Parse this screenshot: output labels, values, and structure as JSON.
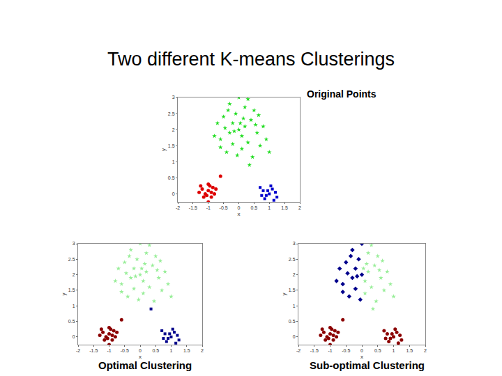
{
  "title": "Two different K-means Clusterings",
  "chart_data": [
    {
      "type": "scatter",
      "title": "Original Points",
      "x_label": "x",
      "y_label": "y",
      "xlim": [
        -2,
        2
      ],
      "xticks": [
        -2,
        -1.5,
        -1,
        -0.5,
        0,
        0.5,
        1,
        1.5,
        2
      ],
      "ylim": [
        -0.25,
        3
      ],
      "yticks": [
        0,
        0.5,
        1,
        1.5,
        2,
        2.5,
        3
      ],
      "series": [
        {
          "color": "#22dd22",
          "marker": "star",
          "x": [
            0,
            0.2,
            -0.2,
            0.1,
            -0.3,
            0.4,
            -0.5,
            0.3,
            -0.1,
            0.6,
            -0.6,
            0.2,
            -0.3,
            0.5,
            -0.7,
            0.8,
            0.1,
            -0.4,
            0.7,
            -0.8,
            0.9,
            0,
            0.3,
            -0.2,
            0.15,
            -0.45,
            0.55,
            -0.05,
            0.45,
            -0.6,
            1.0,
            0.35,
            -0.35,
            0.65,
            -0.15,
            0.05
          ],
          "values": [
            2,
            2.1,
            2.2,
            1.8,
            1.9,
            2.3,
            2.4,
            1.6,
            2.5,
            1.9,
            1.7,
            2.7,
            2.8,
            2.6,
            2.2,
            2.1,
            1.4,
            1.3,
            1.5,
            1.8,
            1.7,
            3,
            2.95,
            1.55,
            2.35,
            2.05,
            2.15,
            1.2,
            1.15,
            1.45,
            1.3,
            0.9,
            2.6,
            2.45,
            1.95,
            2.2
          ]
        },
        {
          "color": "#dd0000",
          "marker": "circle",
          "x": [
            -1.0,
            -1.1,
            -0.9,
            -1.2,
            -0.85,
            -1.05,
            -0.95,
            -1.15,
            -0.8,
            -1.3,
            -1.0,
            -0.9,
            -1.25,
            -0.6,
            -1.0,
            -0.75
          ],
          "values": [
            0.1,
            0,
            0.05,
            0.15,
            0.2,
            -0.05,
            0.25,
            -0.1,
            0,
            0.05,
            0.3,
            -0.1,
            0.25,
            0.55,
            -0.25,
            0.15
          ]
        },
        {
          "color": "#0000cc",
          "marker": "square",
          "x": [
            1.0,
            0.8,
            1.1,
            0.9,
            1.2,
            0.7,
            1.05,
            0.85,
            1.25,
            0.95,
            1.15,
            0.75
          ],
          "values": [
            0,
            0.1,
            0.15,
            -0.05,
            0.05,
            0.2,
            0.25,
            -0.15,
            -0.1,
            0.1,
            -0.2,
            -0.05
          ]
        }
      ]
    },
    {
      "type": "scatter",
      "title": "Optimal Clustering",
      "x_label": "x",
      "y_label": "y",
      "xlim": [
        -2,
        2
      ],
      "xticks": [
        -2,
        -1.5,
        -1,
        -0.5,
        0,
        0.5,
        1,
        1.5,
        2
      ],
      "ylim": [
        -0.25,
        3
      ],
      "yticks": [
        0,
        0.5,
        1,
        1.5,
        2,
        2.5,
        3
      ],
      "series": [
        {
          "color": "#99ee99",
          "marker": "star",
          "x": [
            0,
            0.2,
            -0.2,
            0.1,
            -0.3,
            0.4,
            -0.5,
            0.3,
            -0.1,
            0.6,
            -0.6,
            0.2,
            -0.3,
            0.5,
            -0.7,
            0.8,
            0.1,
            -0.4,
            0.7,
            -0.8,
            0.9,
            0,
            0.3,
            -0.2,
            0.15,
            -0.45,
            0.55,
            -0.05,
            0.45,
            -0.6,
            1.0,
            -0.35,
            0.65,
            -0.15,
            0.05
          ],
          "values": [
            2,
            2.1,
            2.2,
            1.8,
            1.9,
            2.3,
            2.4,
            1.6,
            2.5,
            1.9,
            1.7,
            2.7,
            2.8,
            2.6,
            2.2,
            2.1,
            1.4,
            1.3,
            1.5,
            1.8,
            1.7,
            3,
            2.95,
            1.55,
            2.35,
            2.05,
            2.15,
            1.2,
            1.15,
            1.45,
            1.3,
            2.6,
            2.45,
            1.95,
            2.2
          ]
        },
        {
          "color": "#8b0000",
          "marker": "circle",
          "x": [
            -1.0,
            -1.1,
            -0.9,
            -1.2,
            -0.85,
            -1.05,
            -0.95,
            -1.15,
            -0.8,
            -1.3,
            -1.0,
            -0.9,
            -1.25,
            -0.6,
            -1.0,
            -0.75
          ],
          "values": [
            0.1,
            0,
            0.05,
            0.15,
            0.2,
            -0.05,
            0.25,
            -0.1,
            0,
            0.05,
            0.3,
            -0.1,
            0.25,
            0.55,
            -0.25,
            0.15
          ]
        },
        {
          "color": "#00008b",
          "marker": "square",
          "x": [
            1.0,
            0.8,
            1.1,
            0.9,
            1.2,
            0.7,
            1.05,
            0.85,
            1.25,
            0.95,
            1.15,
            0.75,
            0.35
          ],
          "values": [
            0,
            0.1,
            0.15,
            -0.05,
            0.05,
            0.2,
            0.25,
            -0.15,
            -0.1,
            0.1,
            -0.2,
            -0.05,
            0.9
          ]
        }
      ]
    },
    {
      "type": "scatter",
      "title": "Sub-optimal Clustering",
      "x_label": "x",
      "y_label": "y",
      "xlim": [
        -2,
        2
      ],
      "xticks": [
        -2,
        -1.5,
        -1,
        -0.5,
        0,
        0.5,
        1,
        1.5,
        2
      ],
      "ylim": [
        -0.25,
        3
      ],
      "yticks": [
        0,
        0.5,
        1,
        1.5,
        2,
        2.5,
        3
      ],
      "series": [
        {
          "color": "#00008b",
          "marker": "diamond",
          "x": [
            0,
            -0.2,
            -0.3,
            -0.5,
            -0.1,
            -0.6,
            -0.3,
            -0.7,
            -0.4,
            -0.8,
            0,
            -0.2,
            -0.45,
            -0.05,
            -0.6,
            -0.35,
            -0.15
          ],
          "values": [
            2,
            2.2,
            1.9,
            2.4,
            2.5,
            1.7,
            2.8,
            2.2,
            1.3,
            1.8,
            3,
            1.55,
            2.05,
            1.2,
            1.45,
            2.6,
            1.95
          ]
        },
        {
          "color": "#99ee99",
          "marker": "star",
          "x": [
            0.2,
            0.1,
            0.4,
            0.3,
            0.6,
            0.2,
            0.5,
            0.8,
            0.1,
            0.7,
            0.9,
            0.3,
            0.15,
            0.55,
            0.45,
            1.0,
            0.35,
            0.65,
            0.05
          ],
          "values": [
            2.1,
            1.8,
            2.3,
            1.6,
            1.9,
            2.7,
            2.6,
            2.1,
            1.4,
            1.5,
            1.7,
            2.95,
            2.35,
            2.15,
            1.15,
            1.3,
            0.9,
            2.45,
            2.2
          ]
        },
        {
          "color": "#8b0000",
          "marker": "circle",
          "x": [
            -1.0,
            -1.1,
            -0.9,
            -1.2,
            -0.85,
            -1.05,
            -0.95,
            -1.15,
            -0.8,
            -1.3,
            -1.0,
            -0.9,
            -1.25,
            -0.6,
            -1.0,
            -0.75,
            1.0,
            0.8,
            1.1,
            0.9,
            1.2,
            0.7,
            1.05,
            0.85,
            1.25,
            0.95,
            1.15,
            0.75
          ],
          "values": [
            0.1,
            0,
            0.05,
            0.15,
            0.2,
            -0.05,
            0.25,
            -0.1,
            0,
            0.05,
            0.3,
            -0.1,
            0.25,
            0.55,
            -0.25,
            0.15,
            0,
            0.1,
            0.15,
            -0.05,
            0.05,
            0.2,
            0.25,
            -0.15,
            -0.1,
            0.1,
            -0.2,
            -0.05
          ]
        }
      ]
    }
  ]
}
